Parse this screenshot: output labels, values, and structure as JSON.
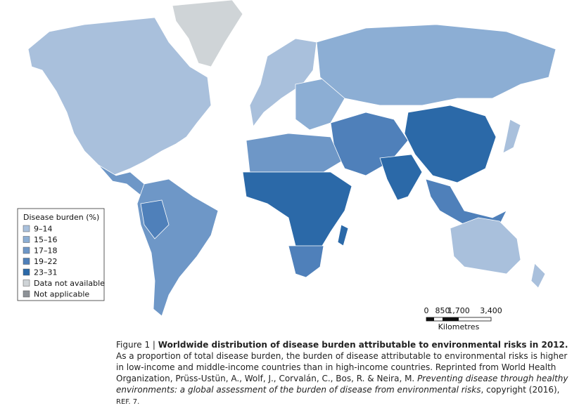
{
  "legend": {
    "title": "Disease burden (%)",
    "items": [
      {
        "label": "9–14",
        "color": "#a9c0dc"
      },
      {
        "label": "15–16",
        "color": "#8caed4"
      },
      {
        "label": "17–18",
        "color": "#6e97c7"
      },
      {
        "label": "19–22",
        "color": "#4f80ba"
      },
      {
        "label": "23–31",
        "color": "#2b69a8"
      },
      {
        "label": "Data not available",
        "color": "#cfd4d7"
      },
      {
        "label": "Not applicable",
        "color": "#8d9297"
      }
    ]
  },
  "scale_bar": {
    "ticks": [
      "0",
      "850",
      "1,700",
      "3,400"
    ],
    "unit": "Kilometres"
  },
  "caption": {
    "segments": [
      {
        "text": "Figure 1 | ",
        "style": "normal"
      },
      {
        "text": "Worldwide distribution of disease burden attributable to environmental risks in 2012.",
        "style": "bold"
      },
      {
        "text": " As a proportion of total disease burden, the burden of disease attributable to environmental risks is higher in low-income and middle-income countries than in high-income countries. Reprinted from World Health Organization, Prüss-Ustün, A., Wolf, J., Corvalán, C., Bos, R. & Neira, M. ",
        "style": "normal"
      },
      {
        "text": "Preventing disease through healthy environments: a global assessment of the burden of disease from environmental risks",
        "style": "italic"
      },
      {
        "text": ", copyright (2016), ",
        "style": "normal"
      },
      {
        "text": "REF. 7.",
        "style": "small"
      }
    ]
  }
}
